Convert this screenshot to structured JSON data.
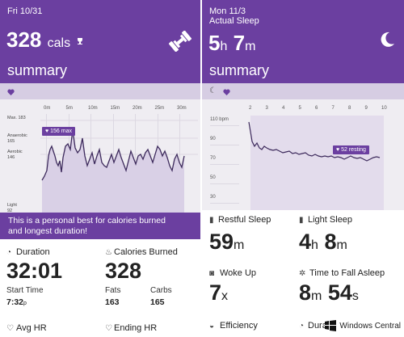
{
  "left": {
    "date": "Fri 10/31",
    "calories_value": "328",
    "calories_unit": "cals",
    "trophy_icon": "trophy-icon",
    "workout_icon": "dumbbell-icon",
    "summary_label": "summary",
    "x_ticks": [
      "0m",
      "5m",
      "10m",
      "15m",
      "20m",
      "25m",
      "30m"
    ],
    "y_labels": {
      "max": "Max.",
      "max_val": "183",
      "anaerobic": "Anaerobic",
      "anaerobic_val": "165",
      "aerobic": "Aerobic",
      "aerobic_val": "146",
      "light": "Light",
      "light_val": "92"
    },
    "max_pill": "156 max",
    "banner_line1": "This is a personal best for calories burned",
    "banner_line2": "and longest duration!",
    "duration_label": "Duration",
    "duration_value": "32:01",
    "start_label": "Start Time",
    "start_value": "7:32",
    "start_suffix": "p",
    "cal_label": "Calories Burned",
    "cal_value": "328",
    "fats_label": "Fats",
    "fats_value": "163",
    "carbs_label": "Carbs",
    "carbs_value": "165",
    "avg_hr_label": "Avg HR",
    "ending_hr_label": "Ending HR"
  },
  "right": {
    "date": "Mon 11/3",
    "subtitle": "Actual Sleep",
    "hours": "5",
    "hours_unit": "h",
    "minutes": "7",
    "minutes_unit": "m",
    "summary_label": "summary",
    "x_ticks": [
      "2",
      "3",
      "4",
      "5",
      "6",
      "7",
      "8",
      "9",
      "10"
    ],
    "y_ticks": [
      "110 bpm",
      "90",
      "70",
      "50",
      "30"
    ],
    "resting_pill": "52 resting",
    "restful_label": "Restful Sleep",
    "restful_value": "59",
    "restful_unit": "m",
    "light_label": "Light Sleep",
    "light_h": "4",
    "light_h_unit": "h",
    "light_m": "8",
    "light_m_unit": "m",
    "woke_label": "Woke Up",
    "woke_value": "7",
    "woke_unit": "x",
    "fall_label": "Time to Fall Asleep",
    "fall_m": "8",
    "fall_m_unit": "m",
    "fall_s": "54",
    "fall_s_unit": "s",
    "efficiency_label": "Efficiency",
    "dura_label": "Dura"
  },
  "watermark": "Windows Central",
  "colors": {
    "accent": "#6b3fa0",
    "chart_fill": "#d9d0e6",
    "chart_bg": "#efedf2"
  }
}
